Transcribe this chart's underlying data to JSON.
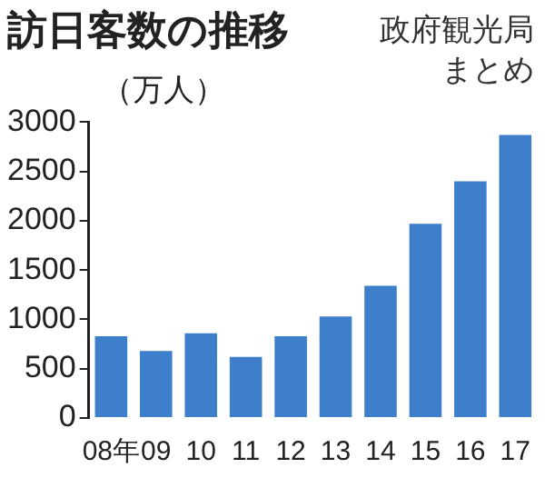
{
  "chart_data": {
    "type": "bar",
    "title": "訪日客数の推移",
    "ylabel": "（万人）",
    "annotations": [
      "政府観光局",
      "まとめ"
    ],
    "categories": [
      "08年",
      "09",
      "10",
      "11",
      "12",
      "13",
      "14",
      "15",
      "16",
      "17"
    ],
    "values": [
      830,
      680,
      860,
      620,
      830,
      1030,
      1340,
      1970,
      2400,
      2870
    ],
    "color": "#3d7fcb",
    "ylim": [
      0,
      3000
    ],
    "yticks": [
      0,
      500,
      1000,
      1500,
      2000,
      2500,
      3000
    ],
    "grid": false,
    "legend": false
  }
}
